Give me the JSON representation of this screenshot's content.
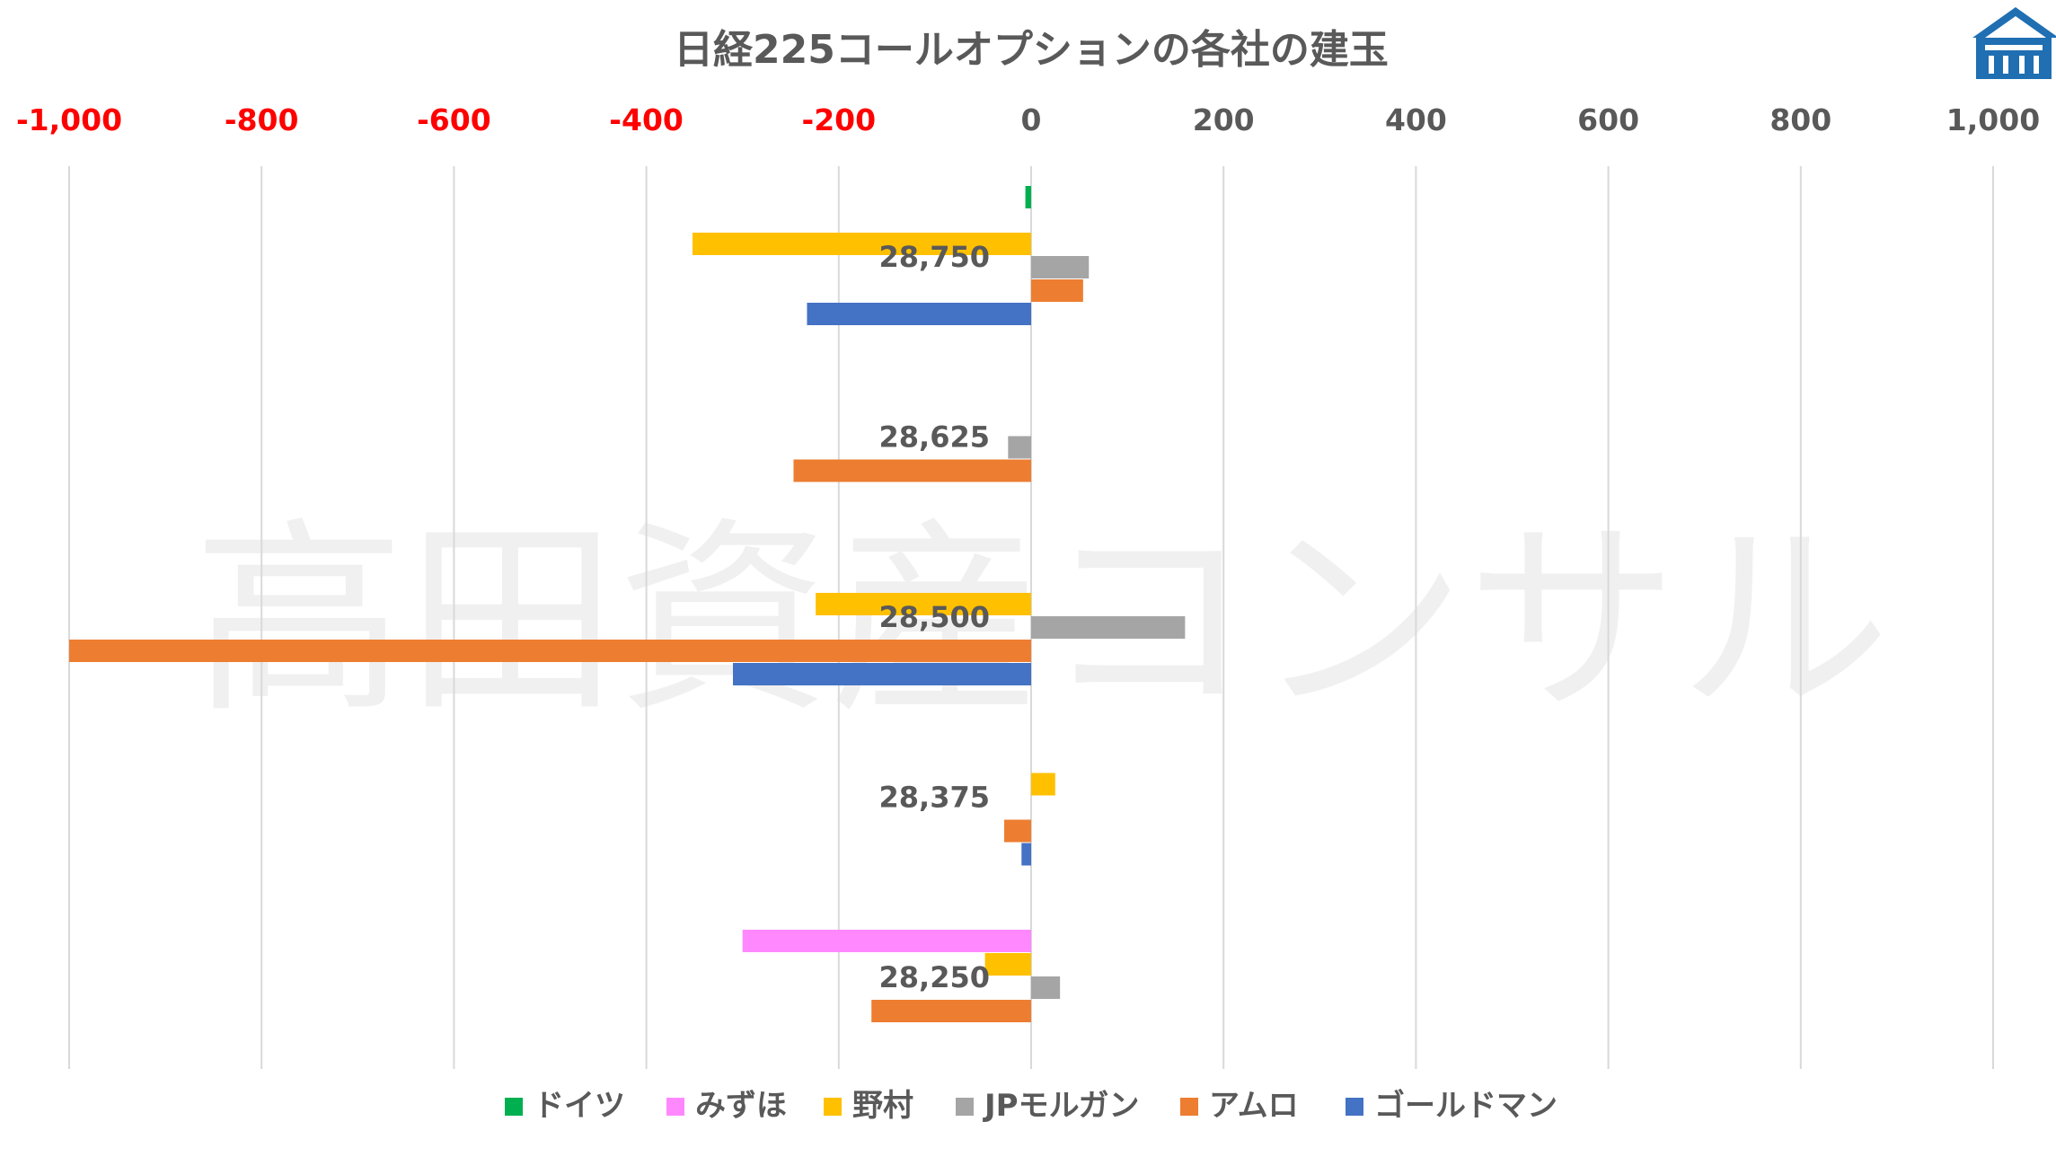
{
  "chart_data": {
    "type": "bar",
    "orientation": "horizontal",
    "title": "日経225コールオプションの各社の建玉",
    "watermark": "高田資産コンサル",
    "axis": {
      "position": "top",
      "min": -1000,
      "max": 1000,
      "step": 200,
      "tick_labels": [
        "-1,000",
        "-800",
        "-600",
        "-400",
        "-200",
        "0",
        "200",
        "400",
        "600",
        "800",
        "1,000"
      ],
      "negative_label_color": "#ff0000",
      "positive_label_color": "#595959",
      "grid": true
    },
    "categories": [
      "28,750",
      "28,625",
      "28,500",
      "28,375",
      "28,250"
    ],
    "series": [
      {
        "name": "ドイツ",
        "color": "#00b050",
        "values": [
          -6,
          0,
          0,
          0,
          0
        ]
      },
      {
        "name": "みずほ",
        "color": "#ff88ff",
        "values": [
          0,
          0,
          0,
          0,
          -300
        ]
      },
      {
        "name": "野村",
        "color": "#ffc000",
        "values": [
          -352,
          0,
          -224,
          25,
          -48
        ]
      },
      {
        "name": "JPモルガン",
        "color": "#a5a5a5",
        "values": [
          60,
          -24,
          160,
          0,
          30
        ]
      },
      {
        "name": "アムロ",
        "color": "#ed7d31",
        "values": [
          54,
          -247,
          -1000,
          -28,
          -166
        ]
      },
      {
        "name": "ゴールドマン",
        "color": "#4472c4",
        "values": [
          -233,
          0,
          -310,
          -10,
          0
        ]
      }
    ],
    "legend_position": "bottom"
  },
  "logo": {
    "name": "house-logo",
    "color": "#1f6fb2"
  }
}
